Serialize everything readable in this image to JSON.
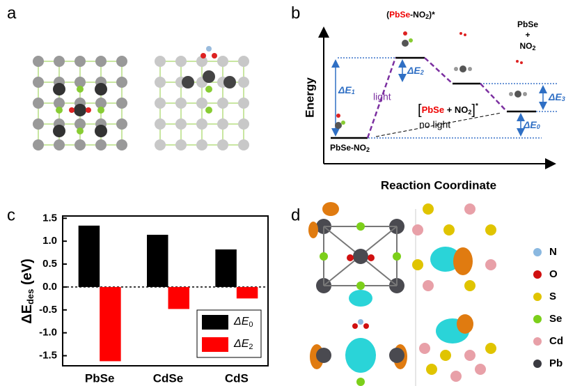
{
  "panel_labels": {
    "a": "a",
    "b": "b",
    "c": "c",
    "d": "d"
  },
  "diagram_b": {
    "energy_axis": "Energy",
    "x_axis": "Reaction Coordinate",
    "excited_label": [
      "(",
      "PbSe",
      "-NO",
      "2",
      ")*"
    ],
    "product_label": [
      "PbSe",
      "+",
      "NO",
      "2"
    ],
    "intermediate_label": [
      "[",
      "PbSe",
      " + NO",
      "2",
      "]",
      "*"
    ],
    "initial_label": [
      "PbSe-NO",
      "2"
    ],
    "light": "light",
    "no_light": "no light",
    "dE1": [
      "ΔE",
      "1"
    ],
    "dE2": [
      "ΔE",
      "2"
    ],
    "dE3": [
      "ΔE",
      "3"
    ],
    "dE0": [
      "ΔE",
      "0"
    ]
  },
  "chart_data": {
    "type": "bar",
    "y_label": {
      "main": "ΔE",
      "sub": "des",
      "unit": " (eV)"
    },
    "categories": [
      "PbSe",
      "CdSe",
      "CdS"
    ],
    "series": [
      {
        "name": [
          "ΔE",
          "0"
        ],
        "color": "#000000",
        "values": [
          1.34,
          1.14,
          0.82
        ]
      },
      {
        "name": [
          "ΔE",
          "2"
        ],
        "color": "#ff0000",
        "values": [
          -1.62,
          -0.48,
          -0.25
        ]
      }
    ],
    "ylim": [
      -1.72,
      1.55
    ],
    "yticks": [
      1.5,
      {
        "value": 1,
        "label": "1.0"
      },
      0.5,
      {
        "value": 0,
        "label": "0.0"
      },
      -0.5,
      {
        "value": -1,
        "label": "-1.0"
      },
      -1.5
    ],
    "legend": "lower right"
  },
  "legend_d": [
    "N",
    "O",
    "S",
    "Se",
    "Cd",
    "Pb"
  ]
}
